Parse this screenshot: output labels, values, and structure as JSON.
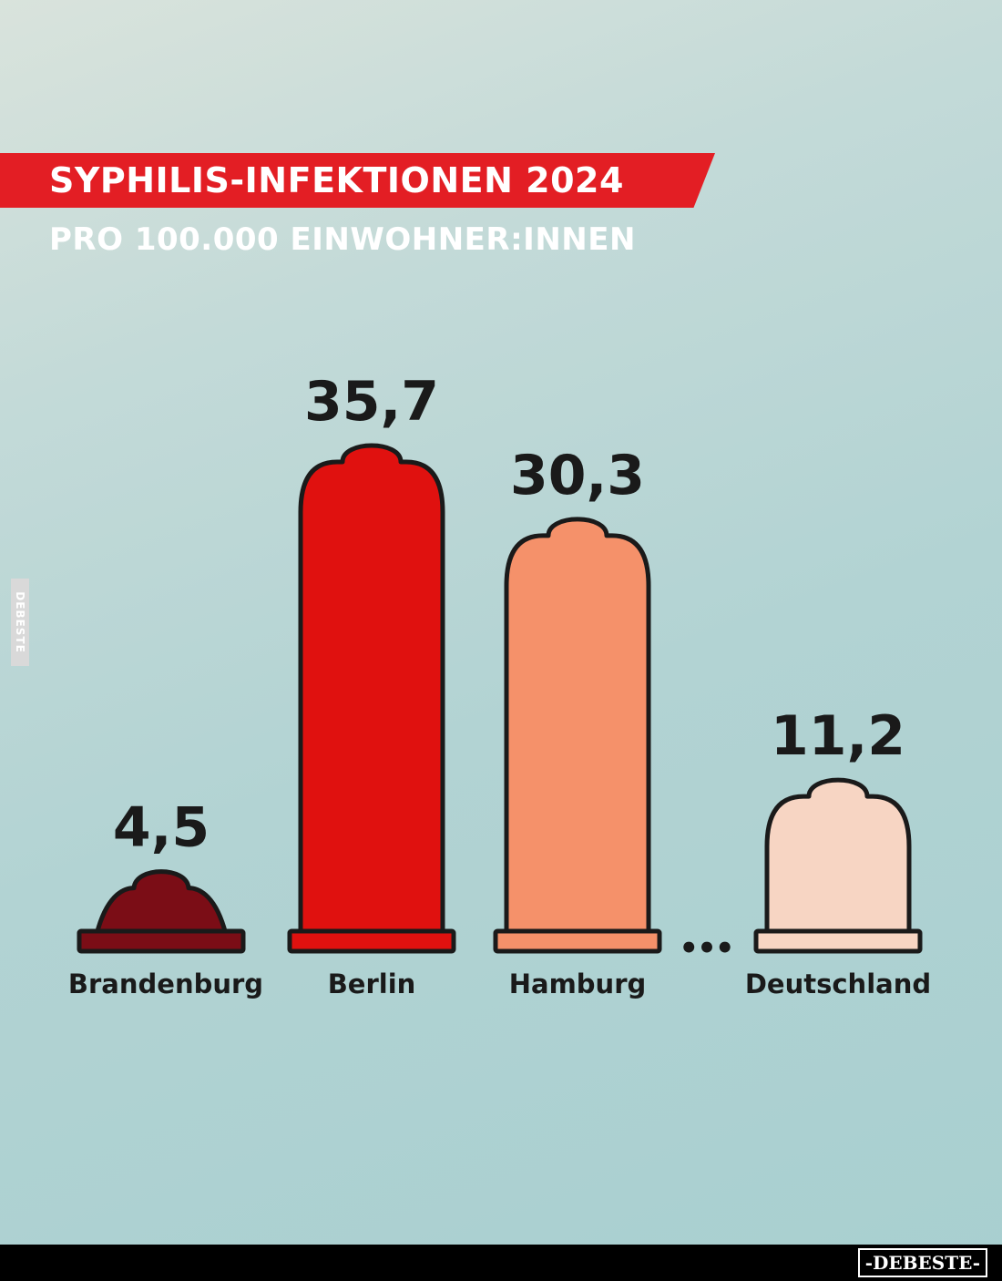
{
  "title": "SYPHILIS-INFEKTIONEN 2024",
  "subtitle": "PRO 100.000 EINWOHNER:INNEN",
  "ellipsis": "•••",
  "watermark_side": "DEBESTE",
  "watermark_footer": "-DEBESTE-",
  "colors": {
    "title_band": "#e31e24",
    "outline": "#1a1a1a"
  },
  "chart_data": {
    "type": "bar",
    "title": "SYPHILIS-INFEKTIONEN 2024",
    "subtitle": "PRO 100.000 EINWOHNER:INNEN",
    "categories": [
      "Brandenburg",
      "Berlin",
      "Hamburg",
      "Deutschland"
    ],
    "values": [
      4.5,
      35.7,
      30.3,
      11.2
    ],
    "value_labels": [
      "4,5",
      "35,7",
      "30,3",
      "11,2"
    ],
    "bar_colors": [
      "#7b0d16",
      "#e0110f",
      "#f5916a",
      "#f7d5c3"
    ],
    "xlabel": "",
    "ylabel": "",
    "grid": false,
    "legend": "none"
  }
}
